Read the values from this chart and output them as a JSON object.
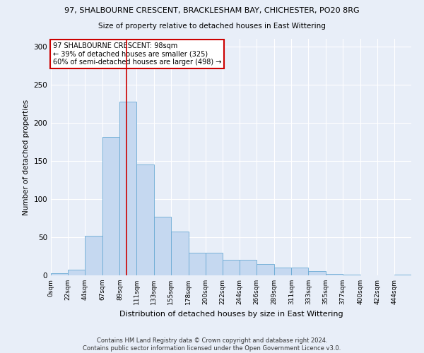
{
  "title1": "97, SHALBOURNE CRESCENT, BRACKLESHAM BAY, CHICHESTER, PO20 8RG",
  "title2": "Size of property relative to detached houses in East Wittering",
  "xlabel": "Distribution of detached houses by size in East Wittering",
  "ylabel": "Number of detached properties",
  "footnote1": "Contains HM Land Registry data © Crown copyright and database right 2024.",
  "footnote2": "Contains public sector information licensed under the Open Government Licence v3.0.",
  "bar_labels": [
    "0sqm",
    "22sqm",
    "44sqm",
    "67sqm",
    "89sqm",
    "111sqm",
    "133sqm",
    "155sqm",
    "178sqm",
    "200sqm",
    "222sqm",
    "244sqm",
    "266sqm",
    "289sqm",
    "311sqm",
    "333sqm",
    "355sqm",
    "377sqm",
    "400sqm",
    "422sqm",
    "444sqm"
  ],
  "bar_values": [
    3,
    7,
    52,
    181,
    228,
    145,
    77,
    57,
    30,
    30,
    20,
    20,
    15,
    10,
    10,
    6,
    2,
    1,
    0,
    0,
    1
  ],
  "bar_color": "#c5d8f0",
  "bar_edge_color": "#6aaad4",
  "bg_color": "#e8eef8",
  "grid_color": "#ffffff",
  "vline_color": "#cc0000",
  "ylim": [
    0,
    310
  ],
  "yticks": [
    0,
    50,
    100,
    150,
    200,
    250,
    300
  ],
  "annotation_text": "97 SHALBOURNE CRESCENT: 98sqm\n← 39% of detached houses are smaller (325)\n60% of semi-detached houses are larger (498) →",
  "annotation_box_color": "#ffffff",
  "annotation_box_edge_color": "#cc0000",
  "bin_starts": [
    0,
    22,
    44,
    67,
    89,
    111,
    133,
    155,
    178,
    200,
    222,
    244,
    266,
    289,
    311,
    333,
    355,
    377,
    400,
    422,
    444
  ],
  "property_size": 98,
  "figsize": [
    6.0,
    5.0
  ],
  "dpi": 100
}
